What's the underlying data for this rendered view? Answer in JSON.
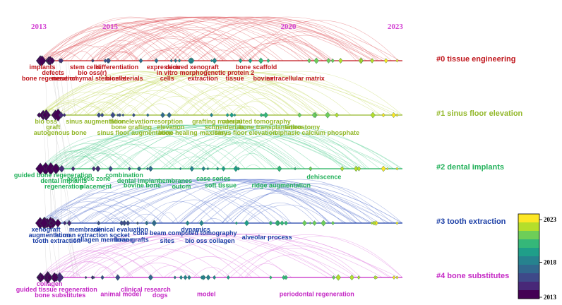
{
  "years": [
    {
      "label": "2013",
      "year": 2013
    },
    {
      "label": "2015",
      "year": 2015
    },
    {
      "label": "2020",
      "year": 2020
    },
    {
      "label": "2023",
      "year": 2023
    }
  ],
  "clusters": [
    {
      "id": "c0",
      "name": "#0 tissue engineering",
      "color": "#c0171d",
      "labels": [
        {
          "text": "implants",
          "year": 2013.1,
          "row": 0
        },
        {
          "text": "defects",
          "year": 2013.4,
          "row": 1
        },
        {
          "text": "bone regeneration",
          "year": 2013.3,
          "row": 2
        },
        {
          "text": "mesenchymal stem cells",
          "year": 2014.4,
          "row": 2
        },
        {
          "text": "stem cells",
          "year": 2014.3,
          "row": 0
        },
        {
          "text": "bio oss(r)",
          "year": 2014.5,
          "row": 1
        },
        {
          "text": "differentiation",
          "year": 2015.2,
          "row": 0
        },
        {
          "text": "biomaterials",
          "year": 2015.4,
          "row": 2
        },
        {
          "text": "expression",
          "year": 2016.5,
          "row": 0
        },
        {
          "text": "in vitro",
          "year": 2016.6,
          "row": 1
        },
        {
          "text": "cells",
          "year": 2016.6,
          "row": 2
        },
        {
          "text": "derived xenograft",
          "year": 2017.3,
          "row": 0
        },
        {
          "text": "morphogenetic protein 2",
          "year": 2018.0,
          "row": 1
        },
        {
          "text": "extraction",
          "year": 2017.6,
          "row": 2
        },
        {
          "text": "tissue",
          "year": 2018.5,
          "row": 2
        },
        {
          "text": "bone scaffold",
          "year": 2019.1,
          "row": 0
        },
        {
          "text": "bovine",
          "year": 2019.3,
          "row": 2
        },
        {
          "text": "extracellular matrix",
          "year": 2020.2,
          "row": 2
        }
      ]
    },
    {
      "id": "c1",
      "name": "#1 sinus floor elevation",
      "color": "#93b82a",
      "labels": [
        {
          "text": "bio oss",
          "year": 2013.2,
          "row": 0
        },
        {
          "text": "graft",
          "year": 2013.4,
          "row": 1
        },
        {
          "text": "autogenous bone",
          "year": 2013.6,
          "row": 2
        },
        {
          "text": "sinus augmentation",
          "year": 2014.6,
          "row": 0
        },
        {
          "text": "floor elevation",
          "year": 2015.6,
          "row": 0
        },
        {
          "text": "bone grafting",
          "year": 2015.6,
          "row": 1
        },
        {
          "text": "sinus floor augmentation",
          "year": 2015.7,
          "row": 2
        },
        {
          "text": "resorption",
          "year": 2016.6,
          "row": 0
        },
        {
          "text": "elevation",
          "year": 2016.7,
          "row": 1
        },
        {
          "text": "bone healing",
          "year": 2016.9,
          "row": 2
        },
        {
          "text": "grafting material",
          "year": 2018.0,
          "row": 0
        },
        {
          "text": "schneiderian",
          "year": 2018.2,
          "row": 1
        },
        {
          "text": "computed tomography",
          "year": 2019.1,
          "row": 0
        },
        {
          "text": "bone transplantation",
          "year": 2019.5,
          "row": 1
        },
        {
          "text": "maxillary",
          "year": 2017.9,
          "row": 2
        },
        {
          "text": "sinus floor elevation",
          "year": 2018.8,
          "row": 2
        },
        {
          "text": "antrostomy",
          "year": 2020.4,
          "row": 1
        },
        {
          "text": "biphasic calcium phosphate",
          "year": 2020.8,
          "row": 2
        }
      ]
    },
    {
      "id": "c2",
      "name": "#2 dental implants",
      "color": "#22b15a",
      "labels": [
        {
          "text": "guided bone regeneration",
          "year": 2013.4,
          "row": 0
        },
        {
          "text": "dental implants",
          "year": 2013.7,
          "row": 1
        },
        {
          "text": "regeneration",
          "year": 2013.7,
          "row": 2
        },
        {
          "text": "aesthetic zone",
          "year": 2014.4,
          "row": 0.6
        },
        {
          "text": "placement",
          "year": 2014.6,
          "row": 2
        },
        {
          "text": "combination",
          "year": 2015.4,
          "row": 0
        },
        {
          "text": "dental implant",
          "year": 2015.8,
          "row": 1
        },
        {
          "text": "bovine bone",
          "year": 2015.9,
          "row": 1.8
        },
        {
          "text": "membranes",
          "year": 2016.8,
          "row": 1
        },
        {
          "text": "outcm",
          "year": 2017.0,
          "row": 2
        },
        {
          "text": "case series",
          "year": 2017.9,
          "row": 0.6
        },
        {
          "text": "soft tissue",
          "year": 2018.1,
          "row": 1.8
        },
        {
          "text": "ridge augmentation",
          "year": 2019.8,
          "row": 1.8
        },
        {
          "text": "dehiscence",
          "year": 2021.0,
          "row": 0.3
        }
      ]
    },
    {
      "id": "c3",
      "name": "#3 tooth extraction",
      "color": "#1c3fa6",
      "labels": [
        {
          "text": "xenograft",
          "year": 2013.2,
          "row": 0
        },
        {
          "text": "augmentation",
          "year": 2013.3,
          "row": 1
        },
        {
          "text": "tooth extraction",
          "year": 2013.5,
          "row": 2
        },
        {
          "text": "human extraction socket",
          "year": 2014.5,
          "row": 1
        },
        {
          "text": "membrane",
          "year": 2014.3,
          "row": 0
        },
        {
          "text": "collagen membrane",
          "year": 2014.8,
          "row": 1.8
        },
        {
          "text": "clinical evaluation",
          "year": 2015.3,
          "row": 0
        },
        {
          "text": "bone grafts",
          "year": 2015.6,
          "row": 1.8
        },
        {
          "text": "cone beam computed tomography",
          "year": 2017.1,
          "row": 0.6
        },
        {
          "text": "dynamics",
          "year": 2017.4,
          "row": 0
        },
        {
          "text": "sites",
          "year": 2016.6,
          "row": 2
        },
        {
          "text": "bio oss collagen",
          "year": 2017.8,
          "row": 2
        },
        {
          "text": "alveolar process",
          "year": 2019.4,
          "row": 1.4
        }
      ]
    },
    {
      "id": "c4",
      "name": "#4 bone substitutes",
      "color": "#c529c5",
      "labels": [
        {
          "text": "collagen",
          "year": 2013.3,
          "row": 0
        },
        {
          "text": "guided tissue regeneration",
          "year": 2013.5,
          "row": 1
        },
        {
          "text": "bone substitutes",
          "year": 2013.6,
          "row": 2
        },
        {
          "text": "clinical research",
          "year": 2016.0,
          "row": 1
        },
        {
          "text": "animal model",
          "year": 2015.3,
          "row": 1.8
        },
        {
          "text": "dogs",
          "year": 2016.4,
          "row": 2
        },
        {
          "text": "model",
          "year": 2017.7,
          "row": 1.8
        },
        {
          "text": "periodontal regeneration",
          "year": 2020.8,
          "row": 1.8
        }
      ]
    }
  ],
  "colorbar": {
    "ticks": [
      "2023",
      "2018",
      "2013"
    ],
    "colors": [
      "#fde725",
      "#b5de2b",
      "#6ece58",
      "#35b779",
      "#1f9e89",
      "#26828e",
      "#31688e",
      "#3e4989",
      "#482878",
      "#440154"
    ]
  }
}
